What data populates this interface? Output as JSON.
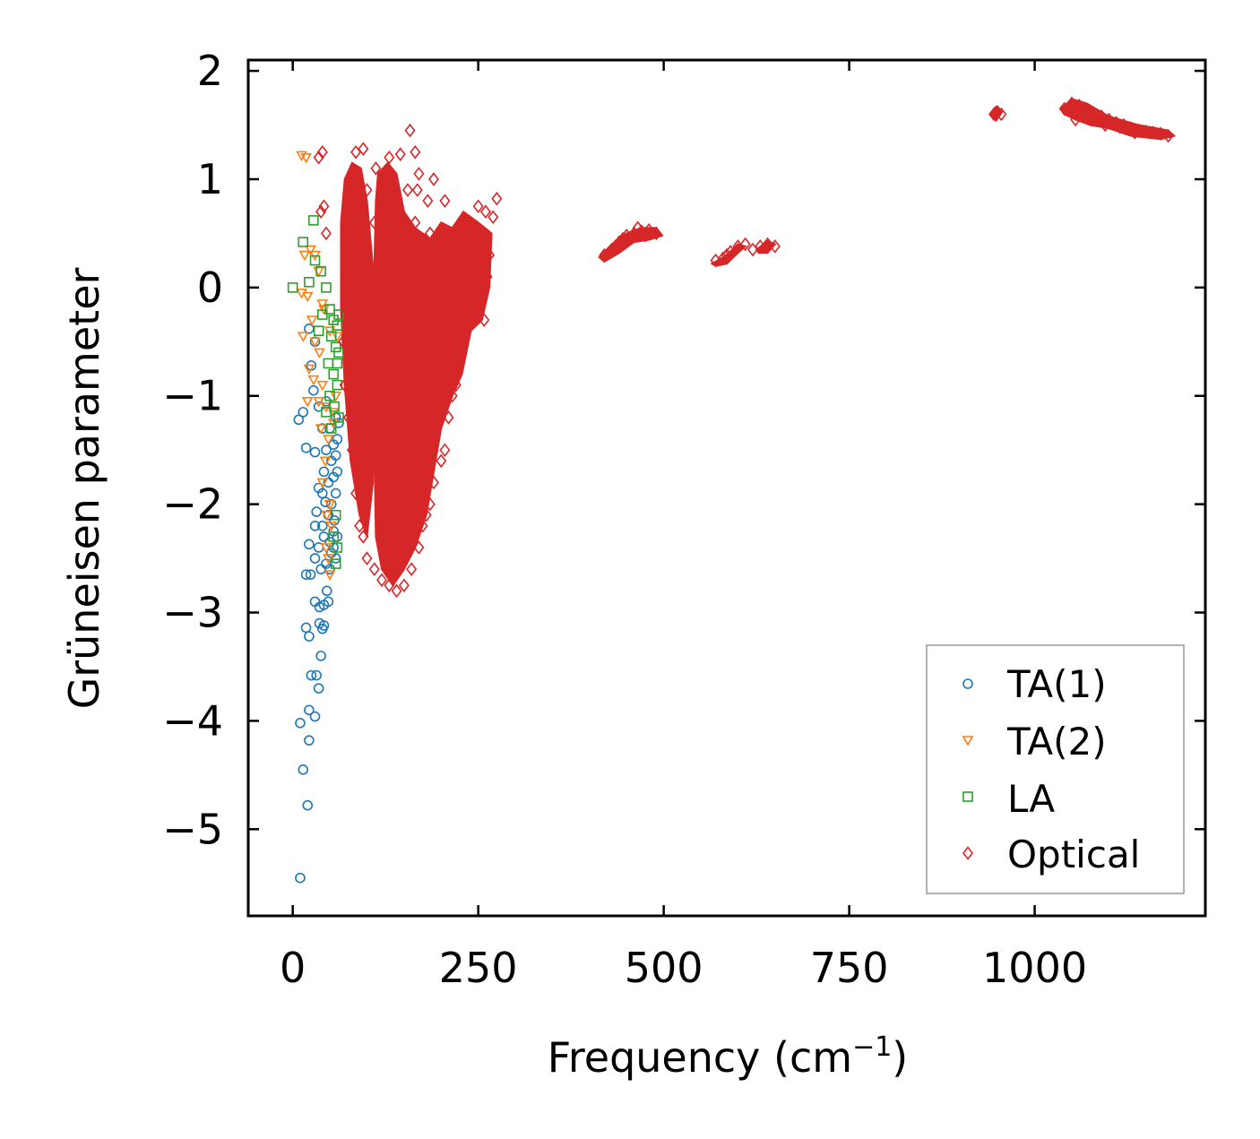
{
  "chart_data": {
    "type": "scatter",
    "title": "",
    "xlabel": "Frequency (cm",
    "xlabel_sup": "−1",
    "xlabel_end": ")",
    "ylabel": "Grüneisen parameter",
    "xlim": [
      -60,
      1230
    ],
    "ylim": [
      -5.8,
      2.1
    ],
    "xticks": [
      0,
      250,
      500,
      750,
      1000
    ],
    "xtick_labels": [
      "0",
      "250",
      "500",
      "750",
      "1000"
    ],
    "yticks": [
      2,
      1,
      0,
      -1,
      -2,
      -3,
      -4,
      -5
    ],
    "ytick_labels": [
      "2",
      "1",
      "0",
      "−1",
      "−2",
      "−3",
      "−4",
      "−5"
    ],
    "legend_position": "lower-right",
    "series": [
      {
        "name": "TA(1)",
        "marker": "circle",
        "color": "#1f77b4",
        "points": [
          [
            10,
            -5.45
          ],
          [
            20,
            -4.78
          ],
          [
            14,
            -4.45
          ],
          [
            22,
            -4.18
          ],
          [
            10,
            -4.02
          ],
          [
            30,
            -3.96
          ],
          [
            22,
            -3.9
          ],
          [
            35,
            -3.7
          ],
          [
            25,
            -3.58
          ],
          [
            32,
            -3.58
          ],
          [
            38,
            -3.4
          ],
          [
            22,
            -3.22
          ],
          [
            18,
            -3.14
          ],
          [
            42,
            -3.12
          ],
          [
            40,
            -3.15
          ],
          [
            36,
            -3.1
          ],
          [
            30,
            -2.9
          ],
          [
            42,
            -2.93
          ],
          [
            48,
            -2.9
          ],
          [
            18,
            -2.65
          ],
          [
            24,
            -2.65
          ],
          [
            30,
            -2.5
          ],
          [
            38,
            -2.6
          ],
          [
            45,
            -2.55
          ],
          [
            50,
            -2.6
          ],
          [
            22,
            -2.37
          ],
          [
            35,
            -2.4
          ],
          [
            42,
            -2.3
          ],
          [
            50,
            -2.35
          ],
          [
            55,
            -2.4
          ],
          [
            60,
            -2.3
          ],
          [
            30,
            -2.2
          ],
          [
            40,
            -2.2
          ],
          [
            48,
            -2.1
          ],
          [
            56,
            -2.15
          ],
          [
            32,
            -2.07
          ],
          [
            44,
            -1.98
          ],
          [
            52,
            -2.0
          ],
          [
            58,
            -1.9
          ],
          [
            40,
            -1.9
          ],
          [
            35,
            -1.85
          ],
          [
            48,
            -1.8
          ],
          [
            55,
            -1.75
          ],
          [
            60,
            -1.7
          ],
          [
            42,
            -1.7
          ],
          [
            52,
            -1.6
          ],
          [
            58,
            -1.55
          ],
          [
            30,
            -1.52
          ],
          [
            18,
            -1.48
          ],
          [
            45,
            -1.5
          ],
          [
            55,
            -1.45
          ],
          [
            60,
            -1.4
          ],
          [
            8,
            -1.22
          ],
          [
            14,
            -1.15
          ],
          [
            40,
            -1.3
          ],
          [
            50,
            -1.3
          ],
          [
            58,
            -1.2
          ],
          [
            35,
            -1.1
          ],
          [
            28,
            -0.95
          ],
          [
            25,
            -0.72
          ],
          [
            22,
            -0.38
          ],
          [
            30,
            -0.5
          ],
          [
            45,
            -1.05
          ],
          [
            62,
            -1.25
          ],
          [
            55,
            -2.25
          ],
          [
            52,
            -2.45
          ],
          [
            58,
            -2.5
          ],
          [
            46,
            -2.8
          ],
          [
            36,
            -2.95
          ]
        ]
      },
      {
        "name": "TA(2)",
        "marker": "triangle-down",
        "color": "#ff7f0e",
        "points": [
          [
            12,
            1.22
          ],
          [
            18,
            1.2
          ],
          [
            24,
            0.35
          ],
          [
            16,
            0.3
          ],
          [
            30,
            0.3
          ],
          [
            12,
            -0.05
          ],
          [
            20,
            -0.08
          ],
          [
            26,
            -0.3
          ],
          [
            14,
            -0.45
          ],
          [
            30,
            -0.5
          ],
          [
            36,
            -0.6
          ],
          [
            22,
            -0.75
          ],
          [
            28,
            -0.85
          ],
          [
            40,
            -0.9
          ],
          [
            20,
            -1.05
          ],
          [
            35,
            -1.05
          ],
          [
            45,
            -1.1
          ],
          [
            55,
            -1.15
          ],
          [
            60,
            -0.45
          ],
          [
            50,
            -0.4
          ],
          [
            42,
            -0.2
          ],
          [
            38,
            -1.3
          ],
          [
            48,
            -1.4
          ],
          [
            44,
            -1.6
          ],
          [
            40,
            -1.8
          ],
          [
            50,
            -2.0
          ],
          [
            46,
            -2.1
          ],
          [
            52,
            -2.2
          ],
          [
            45,
            -2.4
          ],
          [
            48,
            -2.5
          ],
          [
            50,
            -2.65
          ],
          [
            55,
            -1.25
          ],
          [
            58,
            -1.0
          ],
          [
            35,
            0.15
          ],
          [
            40,
            -0.15
          ]
        ]
      },
      {
        "name": "LA",
        "marker": "square",
        "color": "#2ca02c",
        "points": [
          [
            0,
            0.0
          ],
          [
            14,
            0.42
          ],
          [
            28,
            0.62
          ],
          [
            22,
            0.05
          ],
          [
            30,
            0.25
          ],
          [
            38,
            0.15
          ],
          [
            45,
            0.0
          ],
          [
            50,
            -0.2
          ],
          [
            55,
            -0.3
          ],
          [
            60,
            -0.35
          ],
          [
            52,
            -0.45
          ],
          [
            58,
            -0.55
          ],
          [
            62,
            -0.6
          ],
          [
            48,
            -0.7
          ],
          [
            55,
            -0.8
          ],
          [
            60,
            -0.9
          ],
          [
            50,
            -1.0
          ],
          [
            56,
            -1.1
          ],
          [
            62,
            -1.2
          ],
          [
            45,
            -1.15
          ],
          [
            52,
            -1.3
          ],
          [
            58,
            -2.1
          ],
          [
            55,
            -2.3
          ],
          [
            60,
            -2.4
          ],
          [
            58,
            -2.55
          ],
          [
            40,
            -0.25
          ],
          [
            35,
            -0.4
          ],
          [
            62,
            -0.25
          ],
          [
            60,
            -0.7
          ]
        ]
      },
      {
        "name": "Optical",
        "marker": "diamond",
        "color": "#d62728",
        "points": [
          [
            40,
            1.25
          ],
          [
            35,
            1.2
          ],
          [
            42,
            0.75
          ],
          [
            38,
            0.7
          ],
          [
            45,
            0.5
          ],
          [
            85,
            1.25
          ],
          [
            95,
            1.28
          ],
          [
            112,
            1.1
          ],
          [
            130,
            1.2
          ],
          [
            145,
            1.23
          ],
          [
            158,
            1.45
          ],
          [
            165,
            1.25
          ],
          [
            170,
            1.05
          ],
          [
            168,
            0.9
          ],
          [
            182,
            0.8
          ],
          [
            190,
            1.0
          ],
          [
            205,
            0.8
          ],
          [
            250,
            0.75
          ],
          [
            260,
            0.7
          ],
          [
            275,
            0.82
          ],
          [
            270,
            0.65
          ],
          [
            265,
            0.3
          ],
          [
            262,
            0.1
          ],
          [
            258,
            -0.3
          ],
          [
            245,
            -0.1
          ],
          [
            230,
            -0.3
          ],
          [
            220,
            -0.9
          ],
          [
            210,
            -1.2
          ],
          [
            205,
            -1.5
          ],
          [
            190,
            -1.8
          ],
          [
            180,
            -2.1
          ],
          [
            170,
            -2.4
          ],
          [
            160,
            -2.6
          ],
          [
            150,
            -2.75
          ],
          [
            140,
            -2.8
          ],
          [
            130,
            -2.75
          ],
          [
            120,
            -2.7
          ],
          [
            110,
            -2.6
          ],
          [
            100,
            -2.5
          ],
          [
            95,
            -2.3
          ],
          [
            90,
            -2.2
          ],
          [
            85,
            -1.9
          ],
          [
            80,
            -1.5
          ],
          [
            75,
            -1.2
          ],
          [
            70,
            -0.9
          ],
          [
            68,
            -0.5
          ],
          [
            72,
            -0.2
          ],
          [
            78,
            0.1
          ],
          [
            82,
            0.4
          ],
          [
            88,
            0.8
          ],
          [
            100,
            0.9
          ],
          [
            110,
            0.6
          ],
          [
            120,
            0.4
          ],
          [
            130,
            0.5
          ],
          [
            140,
            0.6
          ],
          [
            150,
            0.3
          ],
          [
            160,
            0.0
          ],
          [
            170,
            -0.3
          ],
          [
            180,
            -0.6
          ],
          [
            190,
            -0.9
          ],
          [
            200,
            -1.2
          ],
          [
            195,
            -0.5
          ],
          [
            210,
            0.0
          ],
          [
            220,
            0.3
          ],
          [
            230,
            0.6
          ],
          [
            240,
            0.4
          ],
          [
            250,
            0.2
          ],
          [
            240,
            -0.2
          ],
          [
            225,
            -0.6
          ],
          [
            215,
            -1.0
          ],
          [
            200,
            -1.6
          ],
          [
            185,
            -2.0
          ],
          [
            175,
            -2.2
          ],
          [
            165,
            -1.9
          ],
          [
            155,
            -1.6
          ],
          [
            145,
            -1.3
          ],
          [
            135,
            -1.0
          ],
          [
            125,
            -0.7
          ],
          [
            115,
            -0.4
          ],
          [
            105,
            -0.1
          ],
          [
            95,
            0.2
          ],
          [
            90,
            -0.3
          ],
          [
            100,
            -0.8
          ],
          [
            110,
            -1.3
          ],
          [
            120,
            -1.8
          ],
          [
            130,
            -2.3
          ],
          [
            140,
            -2.5
          ],
          [
            150,
            -2.2
          ],
          [
            160,
            -1.8
          ],
          [
            170,
            -1.4
          ],
          [
            180,
            -1.0
          ],
          [
            190,
            -0.4
          ],
          [
            200,
            0.2
          ],
          [
            185,
            0.5
          ],
          [
            175,
            0.2
          ],
          [
            165,
            0.6
          ],
          [
            155,
            0.9
          ],
          [
            145,
            0.4
          ],
          [
            135,
            0.0
          ],
          [
            125,
            -0.3
          ],
          [
            115,
            0.2
          ],
          [
            420,
            0.3
          ],
          [
            430,
            0.35
          ],
          [
            440,
            0.42
          ],
          [
            450,
            0.48
          ],
          [
            460,
            0.5
          ],
          [
            470,
            0.52
          ],
          [
            480,
            0.53
          ],
          [
            490,
            0.5
          ],
          [
            435,
            0.38
          ],
          [
            445,
            0.45
          ],
          [
            465,
            0.55
          ],
          [
            475,
            0.48
          ],
          [
            570,
            0.25
          ],
          [
            580,
            0.27
          ],
          [
            590,
            0.33
          ],
          [
            600,
            0.38
          ],
          [
            610,
            0.4
          ],
          [
            630,
            0.38
          ],
          [
            640,
            0.4
          ],
          [
            650,
            0.38
          ],
          [
            585,
            0.3
          ],
          [
            620,
            0.35
          ],
          [
            945,
            1.6
          ],
          [
            950,
            1.62
          ],
          [
            955,
            1.6
          ],
          [
            1040,
            1.65
          ],
          [
            1050,
            1.7
          ],
          [
            1060,
            1.68
          ],
          [
            1070,
            1.62
          ],
          [
            1080,
            1.6
          ],
          [
            1090,
            1.58
          ],
          [
            1100,
            1.55
          ],
          [
            1110,
            1.52
          ],
          [
            1120,
            1.5
          ],
          [
            1130,
            1.47
          ],
          [
            1140,
            1.45
          ],
          [
            1150,
            1.44
          ],
          [
            1160,
            1.43
          ],
          [
            1170,
            1.42
          ],
          [
            1180,
            1.4
          ],
          [
            1055,
            1.55
          ],
          [
            1075,
            1.55
          ],
          [
            1095,
            1.5
          ],
          [
            1115,
            1.48
          ],
          [
            1135,
            1.43
          ]
        ]
      }
    ]
  },
  "legend": {
    "items": [
      {
        "label": "TA(1)"
      },
      {
        "label": "TA(2)"
      },
      {
        "label": "LA"
      },
      {
        "label": "Optical"
      }
    ]
  }
}
